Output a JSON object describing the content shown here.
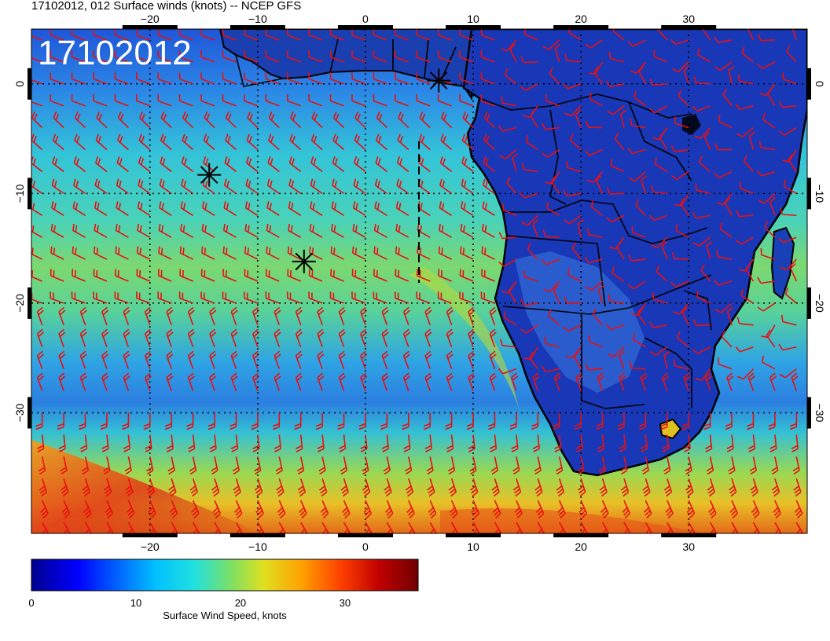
{
  "title": "17102012, 012 Surface winds (knots) -- NCEP GFS",
  "date_stamp": "17102012",
  "map": {
    "lon_range": [
      -31,
      41
    ],
    "lat_range": [
      -41,
      5
    ],
    "lon_ticks": [
      -20,
      -10,
      0,
      10,
      20,
      30
    ],
    "lat_ticks": [
      0,
      -10,
      -20,
      -30
    ],
    "lon_tick_labels": [
      "−20",
      "−10",
      "0",
      "10",
      "20",
      "30"
    ],
    "lat_tick_labels": [
      "0",
      "−10",
      "−20",
      "−30"
    ],
    "grid": true,
    "ocean_speed_note_colors": [
      "#0a1e9c",
      "#1f5be0",
      "#2fa6e8",
      "#35d0d0",
      "#7fd86a",
      "#d8d838",
      "#f0a020",
      "#d83018"
    ],
    "markers": [
      {
        "name": "star-marker-1",
        "lon": 6.8,
        "lat": 0.3
      },
      {
        "name": "star-marker-2",
        "lon": -14.5,
        "lat": -8.3
      },
      {
        "name": "star-marker-3",
        "lon": -5.7,
        "lat": -16.2
      }
    ],
    "barb_color": "#e81010",
    "coast_color": "#000000"
  },
  "colorbar": {
    "label": "Surface Wind Speed, knots",
    "ticks": [
      "0",
      "10",
      "20",
      "30"
    ],
    "tick_values": [
      0,
      10,
      20,
      30
    ],
    "max": 37,
    "stops": [
      "#00008f",
      "#0000ff",
      "#0060ff",
      "#00c0ff",
      "#20e0e0",
      "#80e060",
      "#e0e020",
      "#ffa000",
      "#ff4000",
      "#c00000",
      "#700000"
    ]
  }
}
